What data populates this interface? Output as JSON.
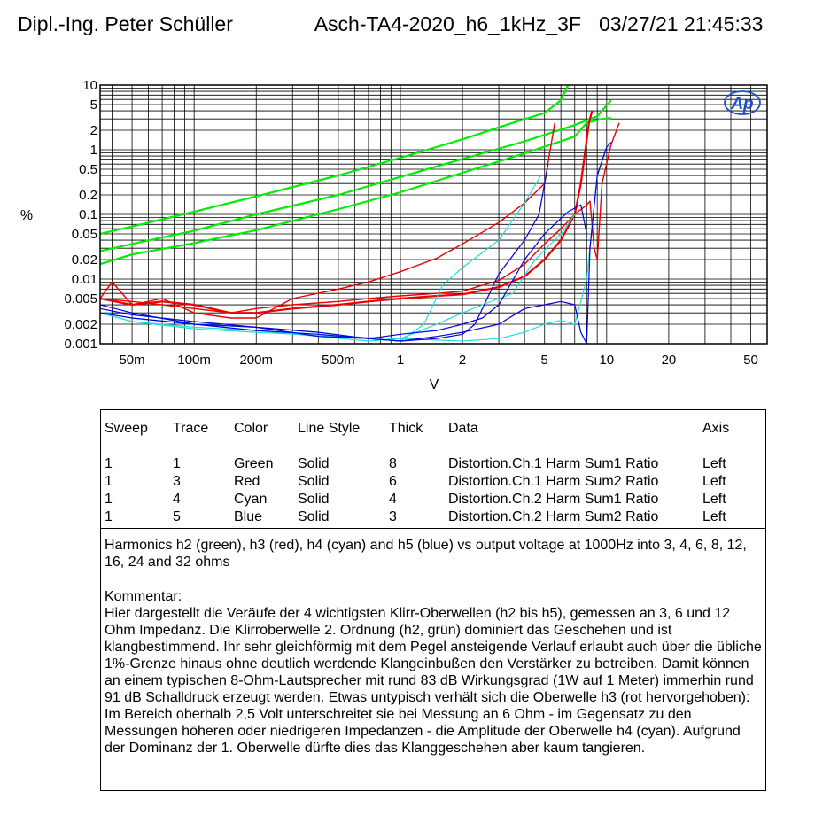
{
  "header": {
    "author": "Dipl.-Ing. Peter Schüller",
    "file": "Asch-TA4-2020_h6_1kHz_3F",
    "datetime": "03/27/21 21:45:33"
  },
  "chart_data": {
    "type": "line",
    "title": "",
    "xlabel": "V",
    "ylabel": "%",
    "x_scale": "log",
    "y_scale": "log",
    "xlim": [
      0.035,
      60
    ],
    "ylim": [
      0.001,
      10
    ],
    "x_ticks": [
      {
        "v": 0.05,
        "label": "50m"
      },
      {
        "v": 0.1,
        "label": "100m"
      },
      {
        "v": 0.2,
        "label": "200m"
      },
      {
        "v": 0.5,
        "label": "500m"
      },
      {
        "v": 1,
        "label": "1"
      },
      {
        "v": 2,
        "label": "2"
      },
      {
        "v": 5,
        "label": "5"
      },
      {
        "v": 10,
        "label": "10"
      },
      {
        "v": 20,
        "label": "20"
      },
      {
        "v": 50,
        "label": "50"
      }
    ],
    "y_ticks": [
      {
        "v": 10,
        "label": "10"
      },
      {
        "v": 5,
        "label": "5"
      },
      {
        "v": 2,
        "label": "2"
      },
      {
        "v": 1,
        "label": "1"
      },
      {
        "v": 0.5,
        "label": "0.5"
      },
      {
        "v": 0.2,
        "label": "0.2"
      },
      {
        "v": 0.1,
        "label": "0.1"
      },
      {
        "v": 0.05,
        "label": "0.05"
      },
      {
        "v": 0.02,
        "label": "0.02"
      },
      {
        "v": 0.01,
        "label": "0.01"
      },
      {
        "v": 0.005,
        "label": "0.005"
      },
      {
        "v": 0.002,
        "label": "0.002"
      },
      {
        "v": 0.001,
        "label": "0.001"
      }
    ],
    "grid": true,
    "logo": "Ap",
    "series": [
      {
        "color": "#00ee00",
        "width": 2.2,
        "points": [
          [
            0.035,
            0.05
          ],
          [
            0.05,
            0.065
          ],
          [
            0.1,
            0.11
          ],
          [
            0.2,
            0.19
          ],
          [
            0.5,
            0.4
          ],
          [
            1,
            0.75
          ],
          [
            2,
            1.45
          ],
          [
            3.5,
            2.6
          ],
          [
            5,
            3.7
          ],
          [
            6,
            5.8
          ],
          [
            6.5,
            10
          ]
        ]
      },
      {
        "color": "#00ee00",
        "width": 2.2,
        "points": [
          [
            0.035,
            0.027
          ],
          [
            0.05,
            0.035
          ],
          [
            0.1,
            0.056
          ],
          [
            0.2,
            0.1
          ],
          [
            0.5,
            0.2
          ],
          [
            1,
            0.38
          ],
          [
            2,
            0.72
          ],
          [
            4,
            1.35
          ],
          [
            7,
            2.4
          ],
          [
            9,
            3.3
          ],
          [
            10.5,
            5.8
          ]
        ]
      },
      {
        "color": "#00ee00",
        "width": 2.2,
        "points": [
          [
            0.035,
            0.017
          ],
          [
            0.05,
            0.024
          ],
          [
            0.1,
            0.036
          ],
          [
            0.2,
            0.057
          ],
          [
            0.5,
            0.12
          ],
          [
            1,
            0.22
          ],
          [
            2,
            0.44
          ],
          [
            4,
            0.88
          ],
          [
            7,
            1.6
          ],
          [
            8,
            2.6
          ],
          [
            9.5,
            3
          ],
          [
            10.5,
            3.1
          ]
        ]
      },
      {
        "color": "#ee0000",
        "width": 1.4,
        "points": [
          [
            0.035,
            0.005
          ],
          [
            0.04,
            0.009
          ],
          [
            0.05,
            0.004
          ],
          [
            0.07,
            0.005
          ],
          [
            0.1,
            0.003
          ],
          [
            0.15,
            0.0025
          ],
          [
            0.2,
            0.0025
          ],
          [
            0.3,
            0.005
          ],
          [
            0.5,
            0.007
          ],
          [
            0.7,
            0.009
          ],
          [
            1,
            0.013
          ],
          [
            1.5,
            0.021
          ],
          [
            2,
            0.035
          ],
          [
            3,
            0.075
          ],
          [
            4,
            0.15
          ],
          [
            5,
            0.3
          ],
          [
            5.6,
            2.6
          ]
        ]
      },
      {
        "color": "#ee0000",
        "width": 2.2,
        "points": [
          [
            0.035,
            0.005
          ],
          [
            0.05,
            0.004
          ],
          [
            0.07,
            0.0045
          ],
          [
            0.1,
            0.004
          ],
          [
            0.15,
            0.003
          ],
          [
            0.2,
            0.003
          ],
          [
            0.3,
            0.0035
          ],
          [
            0.5,
            0.004
          ],
          [
            0.7,
            0.0045
          ],
          [
            1,
            0.005
          ],
          [
            1.5,
            0.0055
          ],
          [
            2,
            0.0058
          ],
          [
            3,
            0.0075
          ],
          [
            4,
            0.011
          ],
          [
            5,
            0.02
          ],
          [
            6,
            0.04
          ],
          [
            7,
            0.1
          ],
          [
            7.5,
            0.3
          ],
          [
            8.2,
            2.6
          ],
          [
            8.5,
            4
          ]
        ]
      },
      {
        "color": "#ee0000",
        "width": 1.4,
        "points": [
          [
            0.035,
            0.005
          ],
          [
            0.05,
            0.0045
          ],
          [
            0.07,
            0.004
          ],
          [
            0.1,
            0.0035
          ],
          [
            0.15,
            0.003
          ],
          [
            0.2,
            0.0035
          ],
          [
            0.3,
            0.004
          ],
          [
            0.5,
            0.0045
          ],
          [
            0.7,
            0.005
          ],
          [
            1,
            0.0055
          ],
          [
            1.5,
            0.006
          ],
          [
            2,
            0.0065
          ],
          [
            3,
            0.0095
          ],
          [
            4,
            0.017
          ],
          [
            5,
            0.035
          ],
          [
            6,
            0.06
          ],
          [
            7,
            0.1
          ],
          [
            8,
            0.14
          ],
          [
            8.3,
            0.16
          ],
          [
            8.7,
            0.03
          ],
          [
            9,
            0.02
          ],
          [
            9.5,
            0.3
          ],
          [
            10.5,
            1.2
          ],
          [
            11.5,
            2.6
          ]
        ]
      },
      {
        "color": "#22dddd",
        "width": 1.2,
        "points": [
          [
            0.035,
            0.003
          ],
          [
            0.05,
            0.0025
          ],
          [
            0.1,
            0.002
          ],
          [
            0.2,
            0.0018
          ],
          [
            0.4,
            0.0015
          ],
          [
            0.7,
            0.0012
          ],
          [
            1,
            0.0011
          ],
          [
            1.3,
            0.002
          ],
          [
            1.6,
            0.008
          ],
          [
            2,
            0.015
          ],
          [
            3,
            0.04
          ],
          [
            4,
            0.15
          ],
          [
            4.8,
            0.4
          ]
        ]
      },
      {
        "color": "#22dddd",
        "width": 1.2,
        "points": [
          [
            0.035,
            0.003
          ],
          [
            0.05,
            0.0022
          ],
          [
            0.1,
            0.0018
          ],
          [
            0.2,
            0.0016
          ],
          [
            0.4,
            0.0013
          ],
          [
            0.7,
            0.0011
          ],
          [
            1,
            0.0012
          ],
          [
            1.5,
            0.002
          ],
          [
            2,
            0.003
          ],
          [
            2.5,
            0.004
          ],
          [
            3,
            0.005
          ],
          [
            3.5,
            0.006
          ],
          [
            4.5,
            0.02
          ],
          [
            6,
            0.05
          ],
          [
            7,
            0.1
          ]
        ]
      },
      {
        "color": "#22dddd",
        "width": 1.2,
        "points": [
          [
            0.035,
            0.003
          ],
          [
            0.05,
            0.0022
          ],
          [
            0.1,
            0.0017
          ],
          [
            0.2,
            0.0015
          ],
          [
            0.5,
            0.0013
          ],
          [
            1,
            0.0012
          ],
          [
            2,
            0.0011
          ],
          [
            3,
            0.0012
          ],
          [
            4,
            0.0015
          ],
          [
            5,
            0.002
          ],
          [
            6,
            0.0023
          ],
          [
            7,
            0.002
          ],
          [
            8,
            0.01
          ],
          [
            9,
            0.4
          ],
          [
            10,
            1.1
          ]
        ]
      },
      {
        "color": "#0000dd",
        "width": 1.2,
        "points": [
          [
            0.035,
            0.004
          ],
          [
            0.05,
            0.003
          ],
          [
            0.1,
            0.002
          ],
          [
            0.2,
            0.0018
          ],
          [
            0.4,
            0.0013
          ],
          [
            0.7,
            0.0012
          ],
          [
            1,
            0.0011
          ],
          [
            1.5,
            0.0012
          ],
          [
            2,
            0.0014
          ],
          [
            2.3,
            0.002
          ],
          [
            3,
            0.012
          ],
          [
            4,
            0.04
          ],
          [
            4.7,
            0.1
          ],
          [
            5.2,
            0.6
          ]
        ]
      },
      {
        "color": "#0000dd",
        "width": 1.2,
        "points": [
          [
            0.035,
            0.0035
          ],
          [
            0.05,
            0.0028
          ],
          [
            0.1,
            0.0022
          ],
          [
            0.2,
            0.0018
          ],
          [
            0.4,
            0.0015
          ],
          [
            0.7,
            0.0012
          ],
          [
            1,
            0.0014
          ],
          [
            1.5,
            0.0016
          ],
          [
            2,
            0.002
          ],
          [
            2.5,
            0.0025
          ],
          [
            3,
            0.004
          ],
          [
            4,
            0.02
          ],
          [
            5,
            0.05
          ],
          [
            6.5,
            0.11
          ],
          [
            7.5,
            0.14
          ],
          [
            8,
            0.05
          ]
        ]
      },
      {
        "color": "#0000dd",
        "width": 1.2,
        "points": [
          [
            0.035,
            0.003
          ],
          [
            0.05,
            0.0025
          ],
          [
            0.1,
            0.002
          ],
          [
            0.2,
            0.0016
          ],
          [
            0.4,
            0.0014
          ],
          [
            0.7,
            0.0012
          ],
          [
            1,
            0.0011
          ],
          [
            1.5,
            0.0013
          ],
          [
            2,
            0.0015
          ],
          [
            3,
            0.002
          ],
          [
            4,
            0.0035
          ],
          [
            5,
            0.004
          ],
          [
            6,
            0.0045
          ],
          [
            7,
            0.004
          ],
          [
            7.5,
            0.0015
          ],
          [
            8,
            0.001
          ],
          [
            8.3,
            0.03
          ],
          [
            9,
            0.4
          ],
          [
            10,
            1.1
          ],
          [
            10.5,
            1.3
          ]
        ]
      }
    ]
  },
  "legend": {
    "headers": {
      "sweep": "Sweep",
      "trace": "Trace",
      "color": "Color",
      "style": "Line Style",
      "thick": "Thick",
      "data": "Data",
      "axis": "Axis"
    },
    "rows": [
      {
        "sweep": "1",
        "trace": "1",
        "color": "Green",
        "style": "Solid",
        "thick": "8",
        "data": "Distortion.Ch.1 Harm Sum1 Ratio",
        "axis": "Left"
      },
      {
        "sweep": "1",
        "trace": "3",
        "color": "Red",
        "style": "Solid",
        "thick": "6",
        "data": "Distortion.Ch.1 Harm Sum2 Ratio",
        "axis": "Left"
      },
      {
        "sweep": "1",
        "trace": "4",
        "color": "Cyan",
        "style": "Solid",
        "thick": "4",
        "data": "Distortion.Ch.2 Harm Sum1 Ratio",
        "axis": "Left"
      },
      {
        "sweep": "1",
        "trace": "5",
        "color": "Blue",
        "style": "Solid",
        "thick": "3",
        "data": "Distortion.Ch.2 Harm Sum2 Ratio",
        "axis": "Left"
      }
    ]
  },
  "notes": {
    "description": "Harmonics h2 (green), h3 (red), h4 (cyan) and h5 (blue) vs output voltage at 1000Hz into 3, 4, 6, 8, 12, 16, 24 and 32 ohms",
    "comment_heading": "Kommentar:",
    "comment": "Hier dargestellt die Veräufe der 4 wichtigsten Klirr-Oberwellen (h2 bis h5), gemessen an 3, 6 und 12 Ohm Impedanz. Die Klirroberwelle 2. Ordnung (h2, grün) dominiert das Geschehen und ist klangbestimmend. Ihr sehr gleichförmig mit dem Pegel ansteigende Verlauf erlaubt auch über die übliche 1%-Grenze hinaus ohne deutlich werdende Klangeinbußen den Verstärker zu betreiben. Damit können an einem typischen 8-Ohm-Lautsprecher mit rund 83 dB Wirkungsgrad (1W auf 1 Meter) immerhin rund 91 dB Schalldruck erzeugt werden. Etwas untypisch verhält sich die Oberwelle h3 (rot hervorgehoben): Im Bereich oberhalb 2,5 Volt unterschreitet sie bei Messung an 6 Ohm - im Gegensatz zu den Messungen höheren oder niedrigeren Impedanzen - die Amplitude der Oberwelle h4 (cyan). Aufgrund der Dominanz der 1. Oberwelle dürfte dies das Klanggeschehen aber kaum tangieren."
  }
}
